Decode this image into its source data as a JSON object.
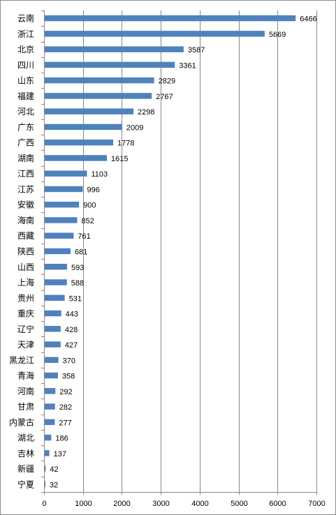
{
  "chart_data": {
    "type": "bar",
    "orientation": "horizontal",
    "title": "",
    "xlabel": "",
    "ylabel": "",
    "xlim": [
      0,
      7000
    ],
    "x_ticks": [
      0,
      1000,
      2000,
      3000,
      4000,
      5000,
      6000,
      7000
    ],
    "grid": "vertical",
    "legend": "none",
    "bar_color": "#4f81bd",
    "data_labels": true,
    "categories": [
      "云南",
      "浙江",
      "北京",
      "四川",
      "山东",
      "福建",
      "河北",
      "广东",
      "广西",
      "湖南",
      "江西",
      "江苏",
      "安徽",
      "海南",
      "西藏",
      "陕西",
      "山西",
      "上海",
      "贵州",
      "重庆",
      "辽宁",
      "天津",
      "黑龙江",
      "青海",
      "河南",
      "甘肃",
      "内蒙古",
      "湖北",
      "吉林",
      "新疆",
      "宁夏"
    ],
    "values": [
      6466,
      5669,
      3587,
      3361,
      2829,
      2767,
      2298,
      2009,
      1778,
      1615,
      1103,
      996,
      900,
      852,
      761,
      681,
      593,
      588,
      531,
      443,
      428,
      427,
      370,
      358,
      292,
      282,
      277,
      186,
      137,
      42,
      32
    ]
  }
}
